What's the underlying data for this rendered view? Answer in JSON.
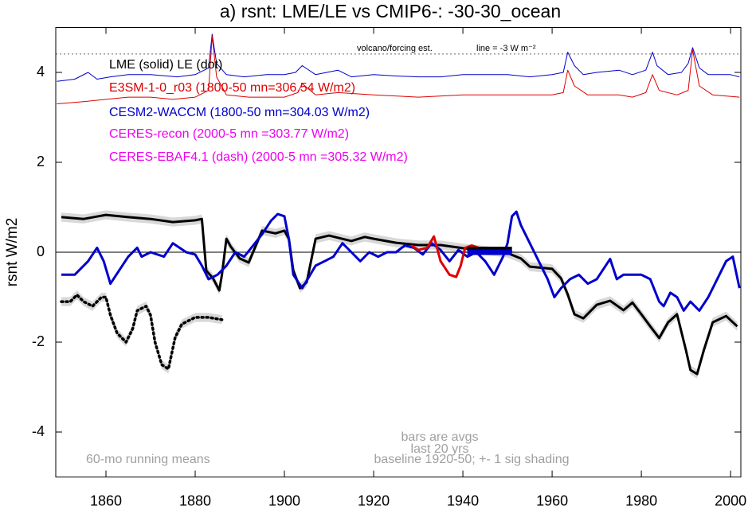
{
  "chart_data": {
    "type": "line",
    "title": "a) rsnt: LME/LE vs CMIP6-: -30-30_ocean",
    "y_label": "rsnt W/m2",
    "xlim": [
      1848.75,
      2002.3
    ],
    "ylim": [
      -5,
      5
    ],
    "xticks": [
      1860,
      1880,
      1900,
      1920,
      1940,
      1960,
      1980,
      2000
    ],
    "yticks": [
      -4,
      -2,
      0,
      2,
      4
    ],
    "zero_line": true,
    "legend": [
      {
        "text": "LME (solid)   LE (dot)",
        "color": "#000000"
      },
      {
        "text": "E3SM-1-0_r03 (1800-50 mn=306.54 W/m2)",
        "color": "#dd0000"
      },
      {
        "text": "CESM2-WACCM (1800-50 mn=304.03 W/m2)",
        "color": "#0000cc"
      },
      {
        "text": "CERES-recon (2000-5 mn =303.77 W/m2)",
        "color": "#ee00ee"
      },
      {
        "text": "CERES-EBAF4.1 (dash) (2000-5 mn =305.32 W/m2)",
        "color": "#ee00ee"
      }
    ],
    "annotations": [
      "volcano/forcing est.",
      "line = -3 W m⁻²",
      "60-mo running means",
      "bars are avgs",
      "last 20 yrs",
      "baseline 1920-50; +- 1 sig shading"
    ],
    "reference_line": {
      "value": 4.41,
      "color": "#666666"
    },
    "shading_sigma": 0.1,
    "series": [
      {
        "color": "#0000cc",
        "style": "thin",
        "x": [
          1849,
          1853,
          1856,
          1858,
          1861,
          1865,
          1870,
          1876,
          1880,
          1883,
          1883.8,
          1884.8,
          1887,
          1891,
          1896,
          1900,
          1902.5,
          1904,
          1907,
          1912,
          1915,
          1920,
          1925,
          1930,
          1935,
          1940,
          1945,
          1950,
          1955,
          1960,
          1962.5,
          1963.5,
          1965,
          1967,
          1970,
          1975,
          1978,
          1981,
          1982.5,
          1983.5,
          1986,
          1989,
          1990.5,
          1991.5,
          1993,
          1995,
          2000,
          2002
        ],
        "values": [
          3.8,
          3.85,
          4.0,
          3.85,
          3.9,
          3.95,
          3.95,
          3.9,
          3.95,
          4.1,
          4.85,
          4.2,
          3.95,
          3.9,
          3.95,
          3.95,
          4.0,
          4.15,
          3.95,
          4.05,
          3.9,
          3.95,
          3.92,
          3.9,
          3.9,
          3.95,
          3.95,
          3.95,
          3.9,
          3.95,
          4.0,
          4.45,
          4.15,
          3.95,
          4.0,
          4.05,
          3.95,
          4.05,
          4.45,
          4.15,
          3.95,
          4.0,
          4.2,
          4.55,
          4.1,
          3.95,
          3.95,
          3.9
        ]
      },
      {
        "color": "#dd0000",
        "style": "thin",
        "x": [
          1849,
          1855,
          1860,
          1865,
          1870,
          1875,
          1880,
          1883,
          1883.8,
          1884.8,
          1887,
          1892,
          1900,
          1903,
          1904,
          1907,
          1912,
          1920,
          1930,
          1940,
          1950,
          1960,
          1962.5,
          1963.5,
          1965,
          1968,
          1975,
          1978,
          1981,
          1982.5,
          1984,
          1988,
          1990.5,
          1991.5,
          1993,
          1996,
          2002
        ],
        "values": [
          3.3,
          3.35,
          3.4,
          3.45,
          3.45,
          3.4,
          3.45,
          3.6,
          4.8,
          3.9,
          3.5,
          3.45,
          3.45,
          3.55,
          3.75,
          3.5,
          3.55,
          3.5,
          3.45,
          3.5,
          3.5,
          3.5,
          3.55,
          4.05,
          3.7,
          3.5,
          3.5,
          3.45,
          3.55,
          3.95,
          3.6,
          3.5,
          3.6,
          4.5,
          3.7,
          3.5,
          3.45
        ]
      },
      {
        "color": "#000000",
        "style": "thick",
        "shaded": true,
        "x": [
          1850,
          1855,
          1860,
          1865,
          1870,
          1875,
          1880,
          1881.5,
          1882.5,
          1884,
          1885.4,
          1886,
          1887,
          1888,
          1890,
          1892,
          1895,
          1898,
          1900,
          1901,
          1902,
          1903.5,
          1905,
          1907,
          1910,
          1915,
          1918,
          1920,
          1925,
          1930,
          1935,
          1940,
          1945,
          1950,
          1953,
          1955,
          1960,
          1962,
          1963.5,
          1965,
          1967,
          1970,
          1973,
          1976,
          1978,
          1980,
          1982,
          1984,
          1986,
          1988,
          1990,
          1991,
          1992.5,
          1994,
          1996,
          1999,
          2001.5
        ],
        "values": [
          0.78,
          0.74,
          0.83,
          0.78,
          0.74,
          0.67,
          0.71,
          0.74,
          -0.41,
          -0.58,
          -0.85,
          -0.5,
          0.3,
          0.12,
          -0.14,
          -0.23,
          0.48,
          0.42,
          0.48,
          0.3,
          -0.41,
          -0.8,
          -0.67,
          0.3,
          0.37,
          0.25,
          0.34,
          0.3,
          0.21,
          0.16,
          0.16,
          0.09,
          0.04,
          -0.02,
          -0.14,
          -0.32,
          -0.37,
          -0.58,
          -0.94,
          -1.38,
          -1.47,
          -1.17,
          -1.08,
          -1.29,
          -1.12,
          -1.38,
          -1.65,
          -1.91,
          -1.56,
          -1.38,
          -2.18,
          -2.62,
          -2.71,
          -2.18,
          -1.56,
          -1.42,
          -1.65
        ]
      },
      {
        "color": "#000000",
        "style": "dotted",
        "shaded": true,
        "x": [
          1850,
          1852,
          1853.5,
          1855,
          1857,
          1859,
          1860,
          1861,
          1862.5,
          1864.5,
          1866,
          1867,
          1869,
          1870,
          1871,
          1872.5,
          1874,
          1875.5,
          1877,
          1880,
          1883,
          1886
        ],
        "values": [
          -1.1,
          -1.1,
          -0.95,
          -1.1,
          -1.2,
          -1.0,
          -1.0,
          -1.4,
          -1.8,
          -2.0,
          -1.7,
          -1.3,
          -1.2,
          -1.4,
          -2.0,
          -2.5,
          -2.6,
          -1.9,
          -1.6,
          -1.45,
          -1.45,
          -1.5
        ]
      },
      {
        "color": "#0000cc",
        "style": "thick",
        "x": [
          1850,
          1853,
          1856,
          1858,
          1859.5,
          1861,
          1863,
          1865,
          1867,
          1868,
          1870,
          1873,
          1875,
          1878,
          1880,
          1881.5,
          1883,
          1885,
          1887,
          1889,
          1891,
          1893,
          1895,
          1897,
          1898.5,
          1900,
          1901,
          1902,
          1904,
          1905.5,
          1907,
          1909,
          1911,
          1913,
          1915,
          1917,
          1919,
          1921,
          1923,
          1925,
          1927,
          1929,
          1931,
          1933,
          1935,
          1937,
          1939,
          1941,
          1943,
          1945,
          1947,
          1948,
          1949,
          1950,
          1951,
          1952,
          1953,
          1955,
          1957,
          1959,
          1960.5,
          1962,
          1964,
          1966,
          1968,
          1970,
          1972,
          1973,
          1974.5,
          1976,
          1978,
          1980,
          1982,
          1984,
          1985,
          1986.5,
          1988,
          1989.5,
          1991,
          1993,
          1995,
          1997,
          1999,
          2000.5,
          2002
        ],
        "values": [
          -0.5,
          -0.5,
          -0.2,
          0.1,
          -0.2,
          -0.7,
          -0.4,
          -0.1,
          0.1,
          -0.1,
          0.0,
          -0.1,
          0.2,
          0.0,
          -0.05,
          -0.3,
          -0.6,
          -0.5,
          -0.3,
          0.0,
          -0.1,
          0.15,
          0.4,
          0.7,
          0.85,
          0.8,
          0.3,
          -0.5,
          -0.8,
          -0.55,
          -0.3,
          -0.2,
          -0.1,
          0.2,
          0.0,
          -0.2,
          0.0,
          -0.1,
          0.0,
          0.0,
          0.15,
          0.1,
          -0.05,
          0.2,
          0.05,
          -0.2,
          0.05,
          -0.1,
          0.0,
          -0.2,
          -0.5,
          -0.3,
          -0.1,
          0.2,
          0.8,
          0.9,
          0.6,
          0.2,
          -0.2,
          -0.6,
          -1.0,
          -0.8,
          -0.6,
          -0.5,
          -0.7,
          -0.6,
          -0.3,
          -0.15,
          -0.6,
          -0.5,
          -0.5,
          -0.5,
          -0.6,
          -1.1,
          -1.2,
          -0.9,
          -1.0,
          -1.3,
          -1.1,
          -1.3,
          -1.0,
          -0.6,
          -0.2,
          -0.1,
          -0.8
        ]
      },
      {
        "color": "#dd0000",
        "style": "thick",
        "x": [
          1928.5,
          1930,
          1932,
          1933.5,
          1935,
          1937,
          1938.5,
          1939.5,
          1940.5,
          1942,
          1943.5,
          1945
        ],
        "values": [
          0.15,
          0.05,
          0.1,
          0.35,
          -0.2,
          -0.5,
          -0.55,
          -0.3,
          0.1,
          0.15,
          0.1,
          0.0
        ]
      }
    ],
    "bars": [
      {
        "x": [
          1941,
          1951
        ],
        "value": 0.06,
        "color": "#000000"
      },
      {
        "x": [
          1941,
          1951
        ],
        "value": 0.0,
        "color": "#0000cc"
      }
    ]
  }
}
